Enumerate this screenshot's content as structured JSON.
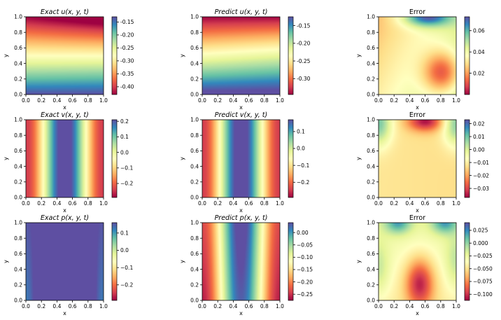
{
  "chart_data": [
    {
      "type": "heatmap",
      "title": "Exact u(x, y, t)",
      "title_italic": true,
      "xlabel": "x",
      "ylabel": "y",
      "xlim": [
        0,
        1
      ],
      "ylim": [
        0,
        1
      ],
      "xticks": [
        "0.0",
        "0.2",
        "0.4",
        "0.6",
        "0.8",
        "1.0"
      ],
      "yticks": [
        "0.0",
        "0.2",
        "0.4",
        "0.6",
        "0.8",
        "1.0"
      ],
      "colormap": "Spectral",
      "colorbar_range": [
        -0.43,
        -0.13
      ],
      "colorbar_ticks": [
        "-0.15",
        "-0.20",
        "-0.25",
        "-0.30",
        "-0.35",
        "-0.40"
      ],
      "colorbar_tick_values": [
        -0.15,
        -0.2,
        -0.25,
        -0.3,
        -0.35,
        -0.4
      ],
      "field": "exact_u"
    },
    {
      "type": "heatmap",
      "title": "Predict u(x, y, t)",
      "title_italic": true,
      "xlabel": "x",
      "ylabel": "y",
      "xlim": [
        0,
        1
      ],
      "ylim": [
        0,
        1
      ],
      "xticks": [
        "0.0",
        "0.2",
        "0.4",
        "0.6",
        "0.8",
        "1.0"
      ],
      "yticks": [
        "0.0",
        "0.2",
        "0.4",
        "0.6",
        "0.8",
        "1.0"
      ],
      "colormap": "Spectral",
      "colorbar_range": [
        -0.345,
        -0.125
      ],
      "colorbar_ticks": [
        "-0.15",
        "-0.20",
        "-0.25",
        "-0.30"
      ],
      "colorbar_tick_values": [
        -0.15,
        -0.2,
        -0.25,
        -0.3
      ],
      "field": "pred_u"
    },
    {
      "type": "heatmap",
      "title": "Error",
      "title_italic": false,
      "xlabel": "x",
      "ylabel": "y",
      "xlim": [
        0,
        1
      ],
      "ylim": [
        0,
        1
      ],
      "xticks": [
        "0.0",
        "0.2",
        "0.4",
        "0.6",
        "0.8",
        "1.0"
      ],
      "yticks": [
        "0.0",
        "0.2",
        "0.4",
        "0.6",
        "0.8",
        "1.0"
      ],
      "colormap": "Spectral",
      "colorbar_range": [
        0.0,
        0.073
      ],
      "colorbar_ticks": [
        "0.06",
        "0.04",
        "0.02"
      ],
      "colorbar_tick_values": [
        0.06,
        0.04,
        0.02
      ],
      "field": "err_u"
    },
    {
      "type": "heatmap",
      "title": "Exact v(x, y, t)",
      "title_italic": true,
      "xlabel": "x",
      "ylabel": "y",
      "xlim": [
        0,
        1
      ],
      "ylim": [
        0,
        1
      ],
      "xticks": [
        "0.0",
        "0.2",
        "0.4",
        "0.6",
        "0.8",
        "1.0"
      ],
      "yticks": [
        "0.0",
        "0.2",
        "0.4",
        "0.6",
        "0.8",
        "1.0"
      ],
      "colormap": "Spectral",
      "colorbar_range": [
        -0.29,
        0.21
      ],
      "colorbar_ticks": [
        "0.2",
        "0.1",
        "0.0",
        "−0.1",
        "−0.2"
      ],
      "colorbar_tick_values": [
        0.2,
        0.1,
        0.0,
        -0.1,
        -0.2
      ],
      "field": "exact_v"
    },
    {
      "type": "heatmap",
      "title": "Predict v(x, y, t)",
      "title_italic": true,
      "xlabel": "x",
      "ylabel": "y",
      "xlim": [
        0,
        1
      ],
      "ylim": [
        0,
        1
      ],
      "xticks": [
        "0.0",
        "0.2",
        "0.4",
        "0.6",
        "0.8",
        "1.0"
      ],
      "yticks": [
        "0.0",
        "0.2",
        "0.4",
        "0.6",
        "0.8",
        "1.0"
      ],
      "colormap": "Spectral",
      "colorbar_range": [
        -0.29,
        0.17
      ],
      "colorbar_ticks": [
        "0.1",
        "0.0",
        "−0.1",
        "−0.2"
      ],
      "colorbar_tick_values": [
        0.1,
        0.0,
        -0.1,
        -0.2
      ],
      "field": "pred_v"
    },
    {
      "type": "heatmap",
      "title": "Error",
      "title_italic": false,
      "xlabel": "x",
      "ylabel": "y",
      "xlim": [
        0,
        1
      ],
      "ylim": [
        0,
        1
      ],
      "xticks": [
        "0.0",
        "0.2",
        "0.4",
        "0.6",
        "0.8",
        "1.0"
      ],
      "yticks": [
        "0.0",
        "0.2",
        "0.4",
        "0.6",
        "0.8",
        "1.0"
      ],
      "colormap": "Spectral",
      "colorbar_range": [
        -0.037,
        0.023
      ],
      "colorbar_ticks": [
        "0.02",
        "0.01",
        "0.00",
        "−0.01",
        "−0.02",
        "−0.03"
      ],
      "colorbar_tick_values": [
        0.02,
        0.01,
        0.0,
        -0.01,
        -0.02,
        -0.03
      ],
      "field": "err_v"
    },
    {
      "type": "heatmap",
      "title": "Exact p(x, y, t)",
      "title_italic": true,
      "xlabel": "x",
      "ylabel": "y",
      "xlim": [
        0,
        1
      ],
      "ylim": [
        0,
        1
      ],
      "xticks": [
        "0.0",
        "0.2",
        "0.4",
        "0.6",
        "0.8",
        "1.0"
      ],
      "yticks": [
        "0.0",
        "0.2",
        "0.4",
        "0.6",
        "0.8",
        "1.0"
      ],
      "colormap": "Spectral",
      "colorbar_range": [
        -0.29,
        0.16
      ],
      "colorbar_ticks": [
        "0.1",
        "0.0",
        "−0.1",
        "−0.2"
      ],
      "colorbar_tick_values": [
        0.1,
        0.0,
        -0.1,
        -0.2
      ],
      "field": "exact_p"
    },
    {
      "type": "heatmap",
      "title": "Predict p(x, y, t)",
      "title_italic": true,
      "xlabel": "x",
      "ylabel": "y",
      "xlim": [
        0,
        1
      ],
      "ylim": [
        0,
        1
      ],
      "xticks": [
        "0.0",
        "0.2",
        "0.4",
        "0.6",
        "0.8",
        "1.0"
      ],
      "yticks": [
        "0.0",
        "0.2",
        "0.4",
        "0.6",
        "0.8",
        "1.0"
      ],
      "colormap": "Spectral",
      "colorbar_range": [
        -0.275,
        0.04
      ],
      "colorbar_ticks": [
        "0.00",
        "−0.05",
        "−0.10",
        "−0.15",
        "−0.20",
        "−0.25"
      ],
      "colorbar_tick_values": [
        0.0,
        -0.05,
        -0.1,
        -0.15,
        -0.2,
        -0.25
      ],
      "field": "pred_p"
    },
    {
      "type": "heatmap",
      "title": "Error",
      "title_italic": false,
      "xlabel": "x",
      "ylabel": "y",
      "xlim": [
        0,
        1
      ],
      "ylim": [
        0,
        1
      ],
      "xticks": [
        "0.0",
        "0.2",
        "0.4",
        "0.6",
        "0.8",
        "1.0"
      ],
      "yticks": [
        "0.0",
        "0.2",
        "0.4",
        "0.6",
        "0.8",
        "1.0"
      ],
      "colormap": "Spectral",
      "colorbar_range": [
        -0.112,
        0.04
      ],
      "colorbar_ticks": [
        "0.025",
        "0.000",
        "−0.025",
        "−0.050",
        "−0.075",
        "−0.100"
      ],
      "colorbar_tick_values": [
        0.025,
        0.0,
        -0.025,
        -0.05,
        -0.075,
        -0.1
      ],
      "field": "err_p"
    }
  ]
}
